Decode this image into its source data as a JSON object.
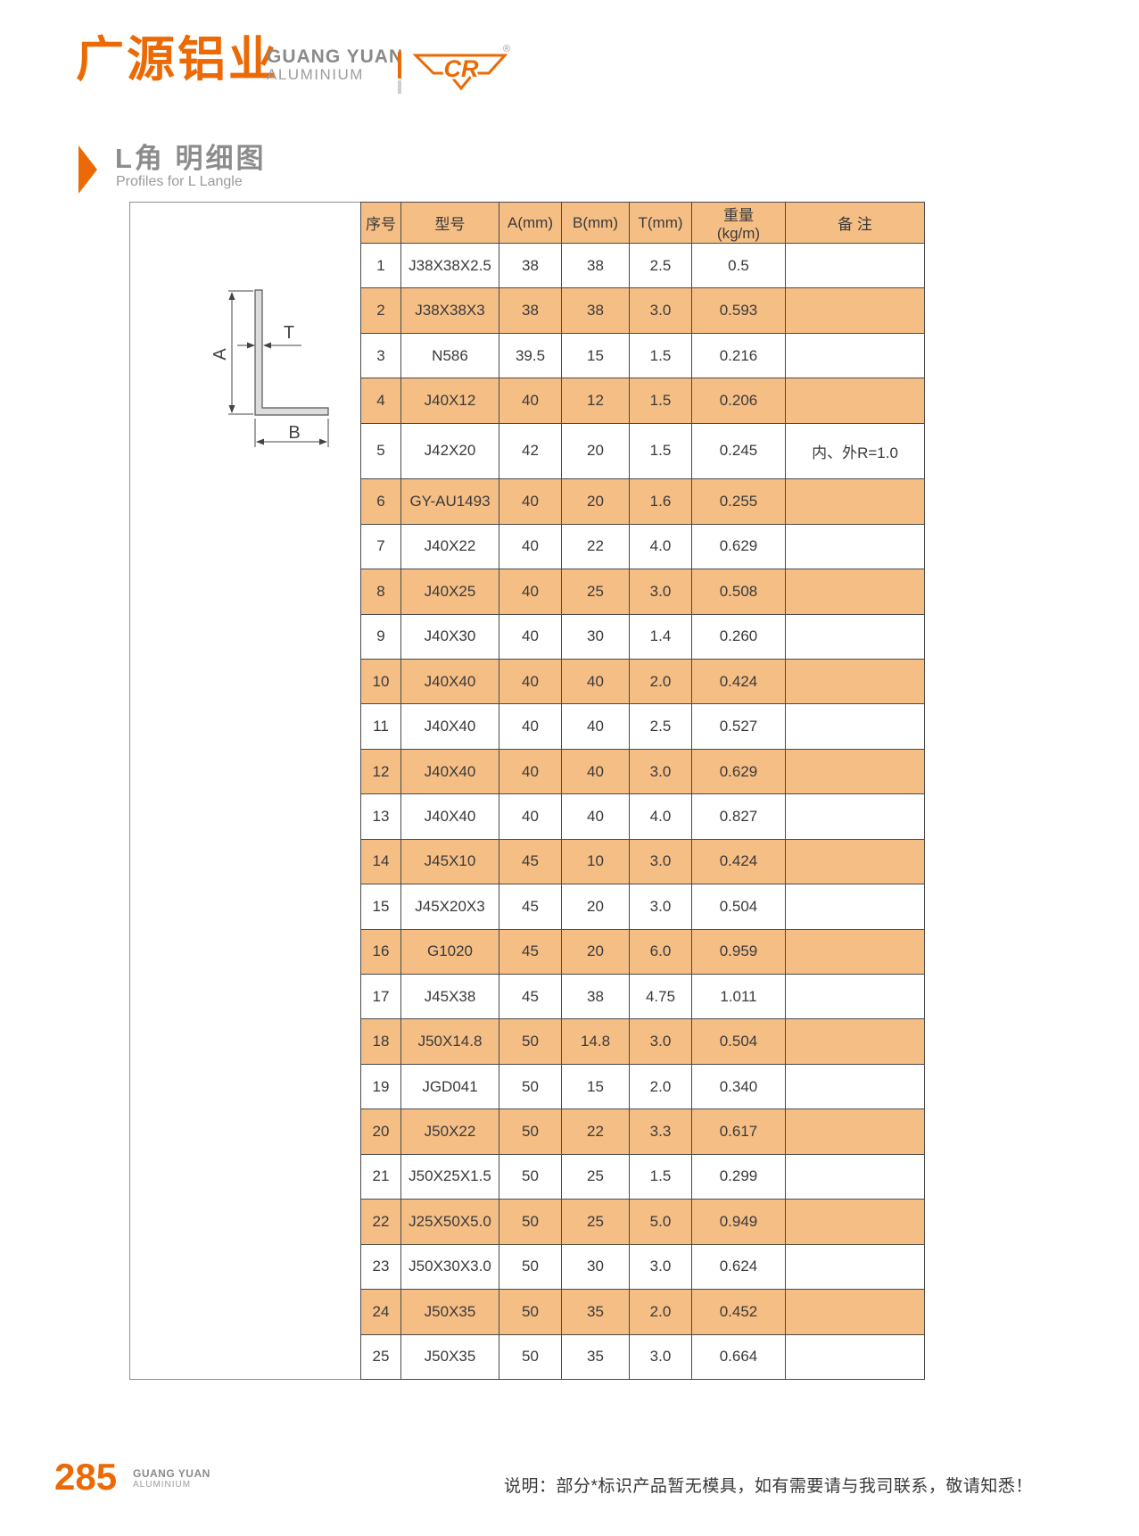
{
  "brand": {
    "logo_cn": "广源铝业",
    "logo_en_line1": "GUANG YUAN",
    "logo_en_line2": "ALUMINIUM",
    "cr_logo_text": "CR",
    "registered_mark": "®"
  },
  "section": {
    "title_cn": "L角 明细图",
    "title_en": "Profiles for L Langle"
  },
  "diagram": {
    "label_a": "A",
    "label_b": "B",
    "label_t": "T"
  },
  "table": {
    "headers": [
      "序号",
      "型号",
      "A(mm)",
      "B(mm)",
      "T(mm)",
      "重量\n(kg/m)",
      "备 注"
    ],
    "rows": [
      [
        "1",
        "J38X38X2.5",
        "38",
        "38",
        "2.5",
        "0.5",
        ""
      ],
      [
        "2",
        "J38X38X3",
        "38",
        "38",
        "3.0",
        "0.593",
        ""
      ],
      [
        "3",
        "N586",
        "39.5",
        "15",
        "1.5",
        "0.216",
        ""
      ],
      [
        "4",
        "J40X12",
        "40",
        "12",
        "1.5",
        "0.206",
        ""
      ],
      [
        "5",
        "J42X20",
        "42",
        "20",
        "1.5",
        "0.245",
        "内、外R=1.0"
      ],
      [
        "6",
        "GY-AU1493",
        "40",
        "20",
        "1.6",
        "0.255",
        ""
      ],
      [
        "7",
        "J40X22",
        "40",
        "22",
        "4.0",
        "0.629",
        ""
      ],
      [
        "8",
        "J40X25",
        "40",
        "25",
        "3.0",
        "0.508",
        ""
      ],
      [
        "9",
        "J40X30",
        "40",
        "30",
        "1.4",
        "0.260",
        ""
      ],
      [
        "10",
        "J40X40",
        "40",
        "40",
        "2.0",
        "0.424",
        ""
      ],
      [
        "11",
        "J40X40",
        "40",
        "40",
        "2.5",
        "0.527",
        ""
      ],
      [
        "12",
        "J40X40",
        "40",
        "40",
        "3.0",
        "0.629",
        ""
      ],
      [
        "13",
        "J40X40",
        "40",
        "40",
        "4.0",
        "0.827",
        ""
      ],
      [
        "14",
        "J45X10",
        "45",
        "10",
        "3.0",
        "0.424",
        ""
      ],
      [
        "15",
        "J45X20X3",
        "45",
        "20",
        "3.0",
        "0.504",
        ""
      ],
      [
        "16",
        "G1020",
        "45",
        "20",
        "6.0",
        "0.959",
        ""
      ],
      [
        "17",
        "J45X38",
        "45",
        "38",
        "4.75",
        "1.011",
        ""
      ],
      [
        "18",
        "J50X14.8",
        "50",
        "14.8",
        "3.0",
        "0.504",
        ""
      ],
      [
        "19",
        "JGD041",
        "50",
        "15",
        "2.0",
        "0.340",
        ""
      ],
      [
        "20",
        "J50X22",
        "50",
        "22",
        "3.3",
        "0.617",
        ""
      ],
      [
        "21",
        "J50X25X1.5",
        "50",
        "25",
        "1.5",
        "0.299",
        ""
      ],
      [
        "22",
        "J25X50X5.0",
        "50",
        "25",
        "5.0",
        "0.949",
        ""
      ],
      [
        "23",
        "J50X30X3.0",
        "50",
        "30",
        "3.0",
        "0.624",
        ""
      ],
      [
        "24",
        "J50X35",
        "50",
        "35",
        "2.0",
        "0.452",
        ""
      ],
      [
        "25",
        "J50X35",
        "50",
        "35",
        "3.0",
        "0.664",
        ""
      ]
    ]
  },
  "footer": {
    "page_number": "285",
    "brand_line1": "GUANG YUAN",
    "brand_line2": "ALUMINIUM",
    "note": "说明：部分*标识产品暂无模具，如有需要请与我司联系，敬请知悉！"
  },
  "colors": {
    "brand_orange": "#EC6A05",
    "row_orange": "#F5BE85",
    "title_gray": "#8C8C8C",
    "table_border": "#4A4A4A"
  }
}
